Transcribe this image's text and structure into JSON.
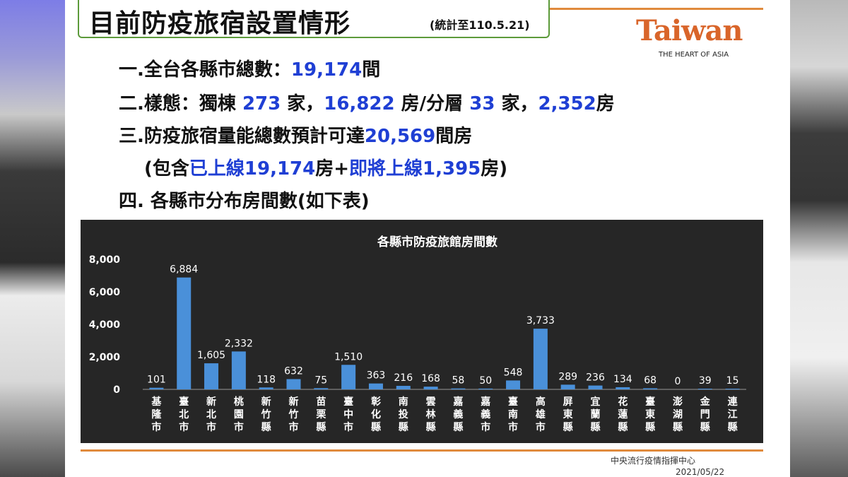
{
  "slide": {
    "title": "目前防疫旅宿設置情形",
    "subtitle": "(統計至110.5.21)",
    "logo": "Taiwan",
    "logo_tagline": "THE HEART OF ASIA",
    "bullets": [
      {
        "parts": [
          {
            "t": "一.全台各縣市總數：",
            "blue": false
          },
          {
            "t": "19,174",
            "blue": true
          },
          {
            "t": "間",
            "blue": false
          }
        ]
      },
      {
        "parts": [
          {
            "t": "二.樣態：獨棟 ",
            "blue": false
          },
          {
            "t": "273",
            "blue": true
          },
          {
            "t": " 家，",
            "blue": false
          },
          {
            "t": "16,822",
            "blue": true
          },
          {
            "t": " 房/分層 ",
            "blue": false
          },
          {
            "t": "33",
            "blue": true
          },
          {
            "t": " 家，",
            "blue": false
          },
          {
            "t": "2,352",
            "blue": true
          },
          {
            "t": "房",
            "blue": false
          }
        ]
      },
      {
        "parts": [
          {
            "t": "三.防疫旅宿量能總數預計可達",
            "blue": false
          },
          {
            "t": "20,569",
            "blue": true
          },
          {
            "t": "間房",
            "blue": false
          }
        ]
      },
      {
        "parts": [
          {
            "t": "(包含",
            "blue": false
          },
          {
            "t": "已上線19,174",
            "blue": true
          },
          {
            "t": "房+",
            "blue": false
          },
          {
            "t": "即將上線1,395",
            "blue": true
          },
          {
            "t": "房)",
            "blue": false
          }
        ]
      },
      {
        "parts": [
          {
            "t": "四. 各縣市分布房間數(如下表)",
            "blue": false
          }
        ]
      }
    ],
    "footer_org": "中央流行疫情指揮中心",
    "footer_date": "2021/05/22"
  },
  "chart_data": {
    "type": "bar",
    "title": "各縣市防疫旅館房間數",
    "categories": [
      "基隆市",
      "臺北市",
      "新北市",
      "桃園市",
      "新竹縣",
      "新竹市",
      "苗栗縣",
      "臺中市",
      "彰化縣",
      "南投縣",
      "雲林縣",
      "嘉義縣",
      "嘉義市",
      "臺南市",
      "高雄市",
      "屏東縣",
      "宜蘭縣",
      "花蓮縣",
      "臺東縣",
      "澎湖縣",
      "金門縣",
      "連江縣"
    ],
    "values": [
      101,
      6884,
      1605,
      2332,
      118,
      632,
      75,
      1510,
      363,
      216,
      168,
      58,
      50,
      548,
      3733,
      289,
      236,
      134,
      68,
      0,
      39,
      15
    ],
    "value_labels": [
      "101",
      "6,884",
      "1,605",
      "2,332",
      "118",
      "632",
      "75",
      "1,510",
      "363",
      "216",
      "168",
      "58",
      "50",
      "548",
      "3,733",
      "289",
      "236",
      "134",
      "68",
      "0",
      "39",
      "15"
    ],
    "ylim": [
      0,
      8000
    ],
    "yticks": [
      0,
      2000,
      4000,
      6000,
      8000
    ],
    "ytick_labels": [
      "0",
      "2,000",
      "4,000",
      "6,000",
      "8,000"
    ],
    "xlabel": "",
    "ylabel": "",
    "grid": false,
    "legend": "none",
    "colors": {
      "bar": "#4a90d9",
      "background": "#262626",
      "text": "#ffffff"
    }
  }
}
